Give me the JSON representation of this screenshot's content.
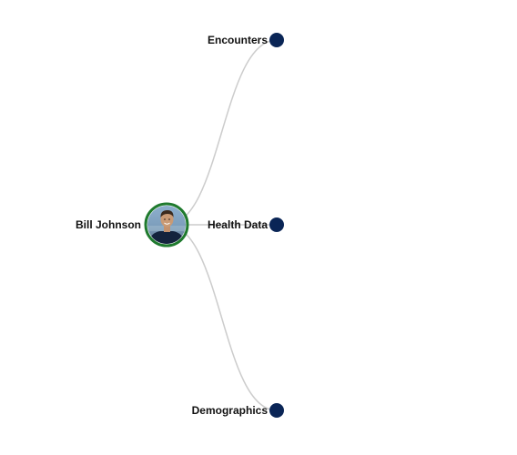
{
  "tree": {
    "root": {
      "label": "Bill Johnson",
      "ring_color": "#1f7a2e",
      "avatar_icon": "person-avatar"
    },
    "children": [
      {
        "label": "Encounters",
        "dot_color": "#0a2556"
      },
      {
        "label": "Health Data",
        "dot_color": "#0a2556"
      },
      {
        "label": "Demographics",
        "dot_color": "#0a2556"
      }
    ],
    "link_color": "#cccccc"
  }
}
